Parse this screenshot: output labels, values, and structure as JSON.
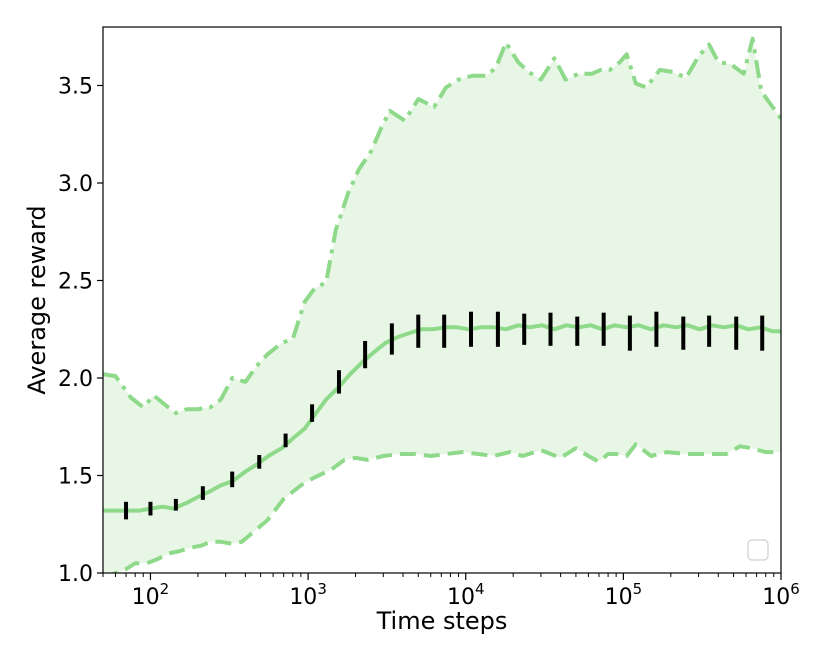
{
  "chart_data": {
    "type": "line",
    "xscale": "log",
    "xlim": [
      50,
      1000000
    ],
    "ylim": [
      1.0,
      3.8
    ],
    "xlabel": "Time steps",
    "ylabel": "Average reward",
    "xticks": [
      {
        "value": 100,
        "base": "10",
        "exp": "2"
      },
      {
        "value": 1000,
        "base": "10",
        "exp": "3"
      },
      {
        "value": 10000,
        "base": "10",
        "exp": "4"
      },
      {
        "value": 100000,
        "base": "10",
        "exp": "5"
      },
      {
        "value": 1000000,
        "base": "10",
        "exp": "6"
      }
    ],
    "yticks": [
      "1.0",
      "1.5",
      "2.0",
      "2.5",
      "3.0",
      "3.5"
    ],
    "legend": "bottom-right, empty",
    "colors": {
      "line": "#8fd98a",
      "band_fill": "#e8f7e5",
      "error_bar": "#000000"
    },
    "series": [
      {
        "role": "mean",
        "style": "solid",
        "x": [
          50,
          60,
          70,
          85,
          100,
          120,
          140,
          170,
          200,
          240,
          280,
          330,
          400,
          480,
          560,
          680,
          800,
          950,
          1100,
          1300,
          1550,
          1850,
          2200,
          2600,
          3100,
          3700,
          4400,
          5200,
          6200,
          7400,
          8800,
          10500,
          12500,
          15000,
          18000,
          21500,
          25500,
          30500,
          36500,
          43500,
          52000,
          62000,
          74000,
          88000,
          105000,
          125000,
          150000,
          180000,
          215000,
          255000,
          305000,
          365000,
          435000,
          520000,
          620000,
          740000,
          880000,
          1000000
        ],
        "y": [
          1.32,
          1.32,
          1.32,
          1.32,
          1.33,
          1.34,
          1.33,
          1.36,
          1.39,
          1.42,
          1.45,
          1.47,
          1.52,
          1.56,
          1.6,
          1.64,
          1.69,
          1.74,
          1.81,
          1.89,
          1.95,
          2.02,
          2.08,
          2.13,
          2.18,
          2.21,
          2.23,
          2.25,
          2.25,
          2.26,
          2.26,
          2.25,
          2.26,
          2.26,
          2.25,
          2.27,
          2.26,
          2.27,
          2.25,
          2.27,
          2.26,
          2.27,
          2.25,
          2.27,
          2.26,
          2.27,
          2.25,
          2.27,
          2.26,
          2.27,
          2.25,
          2.27,
          2.26,
          2.27,
          2.25,
          2.26,
          2.24,
          2.24
        ]
      },
      {
        "role": "upper",
        "style": "dashdot",
        "x": [
          50,
          60,
          75,
          90,
          105,
          125,
          145,
          170,
          200,
          240,
          280,
          330,
          400,
          470,
          550,
          680,
          800,
          950,
          1100,
          1300,
          1500,
          1800,
          2100,
          2500,
          2900,
          3300,
          4100,
          5000,
          6300,
          7500,
          9000,
          11000,
          13500,
          15500,
          18000,
          21500,
          25000,
          30000,
          36500,
          43000,
          52000,
          63000,
          72000,
          82000,
          95000,
          105000,
          120000,
          140000,
          170000,
          205000,
          250000,
          300000,
          350000,
          400000,
          480000,
          580000,
          660000,
          750000,
          1000000
        ],
        "y": [
          2.02,
          2.01,
          1.9,
          1.85,
          1.91,
          1.86,
          1.82,
          1.84,
          1.84,
          1.85,
          1.89,
          2.0,
          1.98,
          2.06,
          2.12,
          2.18,
          2.2,
          2.39,
          2.46,
          2.49,
          2.76,
          2.95,
          3.07,
          3.16,
          3.28,
          3.37,
          3.32,
          3.43,
          3.39,
          3.49,
          3.53,
          3.55,
          3.55,
          3.59,
          3.72,
          3.62,
          3.57,
          3.53,
          3.64,
          3.53,
          3.56,
          3.56,
          3.58,
          3.58,
          3.62,
          3.66,
          3.51,
          3.49,
          3.58,
          3.57,
          3.54,
          3.65,
          3.71,
          3.62,
          3.61,
          3.56,
          3.74,
          3.47,
          3.33
        ]
      },
      {
        "role": "lower",
        "style": "dashed",
        "x": [
          50,
          60,
          70,
          80,
          95,
          110,
          130,
          150,
          180,
          210,
          240,
          280,
          330,
          380,
          450,
          550,
          700,
          900,
          1100,
          1400,
          1700,
          2000,
          2400,
          3000,
          3800,
          4800,
          6000,
          7500,
          9500,
          12000,
          15000,
          19000,
          23000,
          30000,
          40000,
          50000,
          60000,
          70000,
          80000,
          90000,
          105000,
          120000,
          150000,
          190000,
          250000,
          350000,
          450000,
          550000,
          650000,
          800000,
          1000000
        ],
        "y": [
          0.97,
          1.0,
          1.02,
          1.05,
          1.05,
          1.07,
          1.1,
          1.11,
          1.13,
          1.14,
          1.16,
          1.16,
          1.15,
          1.16,
          1.21,
          1.27,
          1.38,
          1.45,
          1.49,
          1.53,
          1.58,
          1.59,
          1.58,
          1.6,
          1.61,
          1.61,
          1.6,
          1.61,
          1.62,
          1.61,
          1.6,
          1.62,
          1.6,
          1.63,
          1.59,
          1.64,
          1.6,
          1.57,
          1.61,
          1.61,
          1.6,
          1.66,
          1.6,
          1.62,
          1.61,
          1.61,
          1.61,
          1.65,
          1.64,
          1.62,
          1.62
        ]
      }
    ],
    "error_bars": {
      "x": [
        70,
        100,
        145,
        215,
        330,
        490,
        720,
        1060,
        1570,
        2300,
        3400,
        5000,
        7300,
        10800,
        16000,
        23500,
        34500,
        51000,
        75000,
        110000,
        162000,
        240000,
        350000,
        520000,
        760000
      ],
      "mean": [
        1.32,
        1.33,
        1.35,
        1.41,
        1.48,
        1.57,
        1.68,
        1.82,
        1.98,
        2.12,
        2.2,
        2.24,
        2.24,
        2.25,
        2.25,
        2.25,
        2.25,
        2.24,
        2.25,
        2.23,
        2.25,
        2.23,
        2.24,
        2.23,
        2.23
      ],
      "half_width": [
        0.045,
        0.035,
        0.03,
        0.035,
        0.04,
        0.035,
        0.035,
        0.045,
        0.06,
        0.07,
        0.08,
        0.085,
        0.085,
        0.09,
        0.09,
        0.08,
        0.085,
        0.075,
        0.085,
        0.09,
        0.09,
        0.085,
        0.08,
        0.085,
        0.09
      ]
    }
  }
}
